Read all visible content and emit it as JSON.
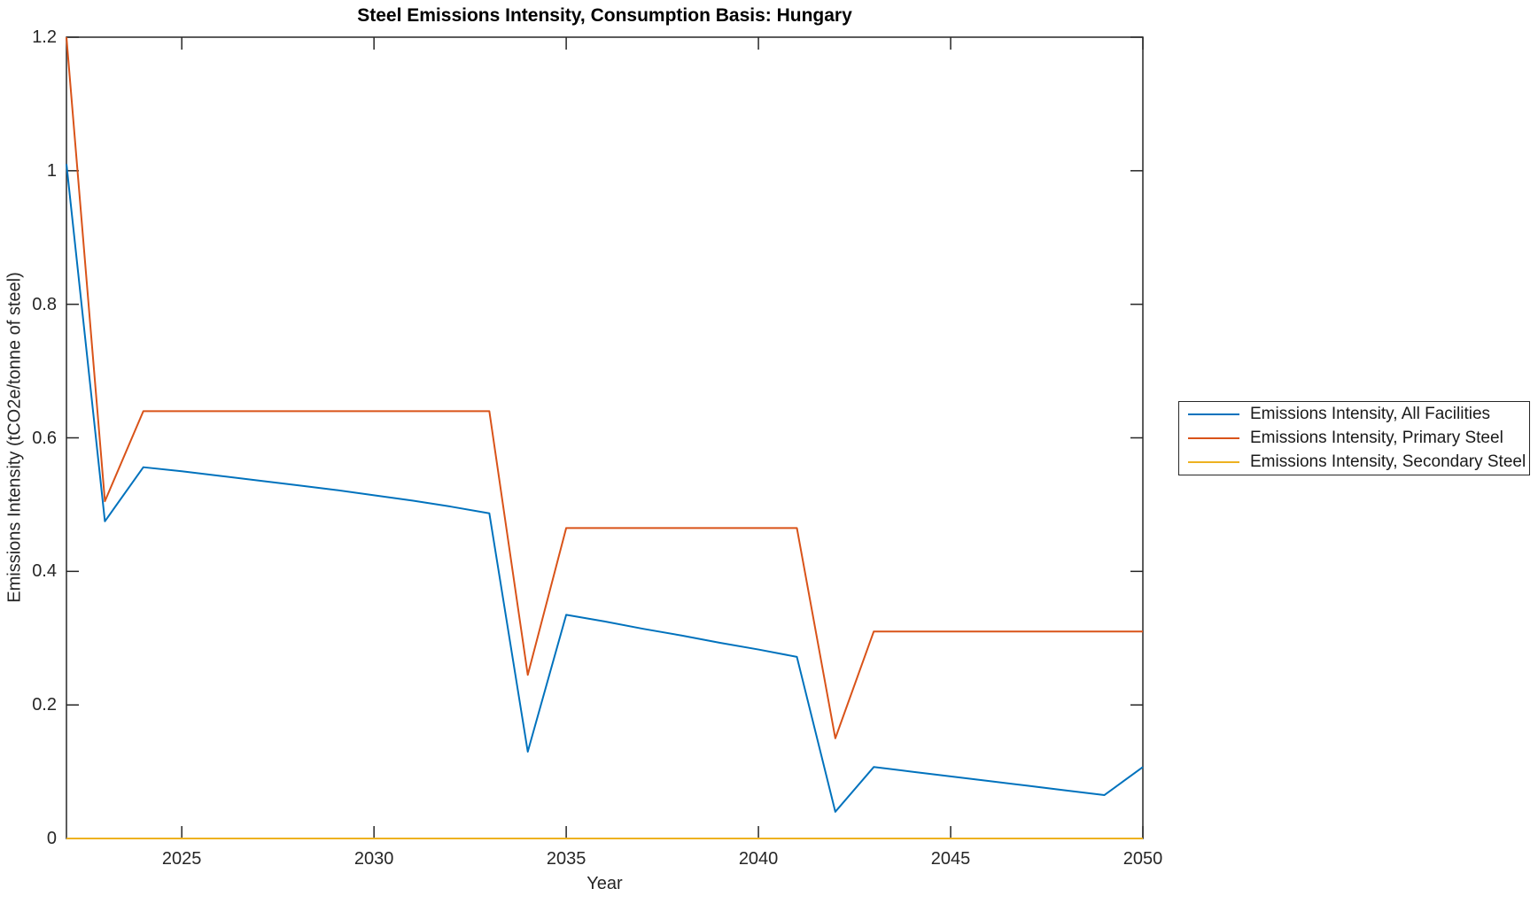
{
  "chart_data": {
    "type": "line",
    "title": "Steel Emissions Intensity, Consumption Basis: Hungary",
    "xlabel": "Year",
    "ylabel": "Emissions Intensity (tCO2e/tonne of steel)",
    "xlim": [
      2022,
      2050
    ],
    "ylim": [
      0,
      1.2
    ],
    "x_ticks": [
      2025,
      2030,
      2035,
      2040,
      2045,
      2050
    ],
    "x_tick_labels": [
      "2025",
      "2030",
      "2035",
      "2040",
      "2045",
      "2050"
    ],
    "y_ticks": [
      0,
      0.2,
      0.4,
      0.6,
      0.8,
      1,
      1.2
    ],
    "y_tick_labels": [
      "0",
      "0.2",
      "0.4",
      "0.6",
      "0.8",
      "1",
      "1.2"
    ],
    "grid": false,
    "legend_position": "right-outside",
    "axis_color": "#262626",
    "background_color": "#ffffff",
    "x": [
      2022,
      2023,
      2024,
      2025,
      2026,
      2027,
      2028,
      2029,
      2030,
      2031,
      2032,
      2033,
      2034,
      2035,
      2036,
      2037,
      2038,
      2039,
      2040,
      2041,
      2042,
      2043,
      2044,
      2045,
      2046,
      2047,
      2048,
      2049,
      2050
    ],
    "series": [
      {
        "name": "Emissions Intensity, All Facilities",
        "color": "#0072BD",
        "values": [
          1.01,
          0.475,
          0.556,
          0.55,
          0.543,
          0.536,
          0.529,
          0.522,
          0.514,
          0.506,
          0.497,
          0.487,
          0.13,
          0.335,
          0.325,
          0.314,
          0.304,
          0.293,
          0.283,
          0.272,
          0.04,
          0.107,
          0.1,
          0.093,
          0.086,
          0.079,
          0.072,
          0.065,
          0.107
        ]
      },
      {
        "name": "Emissions Intensity, Primary Steel",
        "color": "#D95319",
        "values": [
          1.2,
          0.505,
          0.64,
          0.64,
          0.64,
          0.64,
          0.64,
          0.64,
          0.64,
          0.64,
          0.64,
          0.64,
          0.245,
          0.465,
          0.465,
          0.465,
          0.465,
          0.465,
          0.465,
          0.465,
          0.15,
          0.31,
          0.31,
          0.31,
          0.31,
          0.31,
          0.31,
          0.31,
          0.31
        ]
      },
      {
        "name": "Emissions Intensity, Secondary Steel",
        "color": "#EDB120",
        "values": [
          0,
          0,
          0,
          0,
          0,
          0,
          0,
          0,
          0,
          0,
          0,
          0,
          0,
          0,
          0,
          0,
          0,
          0,
          0,
          0,
          0,
          0,
          0,
          0,
          0,
          0,
          0,
          0,
          0
        ]
      }
    ]
  }
}
